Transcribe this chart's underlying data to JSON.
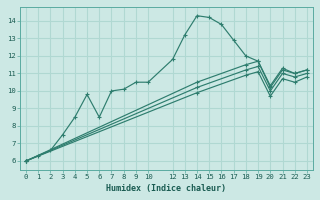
{
  "xlabel": "Humidex (Indice chaleur)",
  "bg_color": "#cce8e4",
  "grid_color": "#b0d8d2",
  "line_color": "#2e7d6e",
  "xlim": [
    -0.5,
    23.5
  ],
  "ylim": [
    5.5,
    14.8
  ],
  "xticks": [
    0,
    1,
    2,
    3,
    4,
    5,
    6,
    7,
    8,
    9,
    10,
    12,
    13,
    14,
    15,
    16,
    17,
    18,
    19,
    20,
    21,
    22,
    23
  ],
  "yticks": [
    6,
    7,
    8,
    9,
    10,
    11,
    12,
    13,
    14
  ],
  "series": [
    {
      "x": [
        0,
        1,
        2,
        3,
        4,
        5,
        6,
        7,
        8,
        9,
        10,
        12,
        13,
        14,
        15,
        16,
        17,
        18,
        19,
        20,
        21,
        22,
        23
      ],
      "y": [
        6,
        6.3,
        6.6,
        7.5,
        8.5,
        9.8,
        8.5,
        10.0,
        10.1,
        10.5,
        10.5,
        11.8,
        13.2,
        14.3,
        14.2,
        13.8,
        12.9,
        12.0,
        11.7,
        10.3,
        11.3,
        11.0,
        11.2
      ]
    },
    {
      "x": [
        0,
        14,
        18,
        19,
        20,
        21,
        22,
        23
      ],
      "y": [
        6,
        10.5,
        11.5,
        11.7,
        10.2,
        11.2,
        11.0,
        11.2
      ]
    },
    {
      "x": [
        0,
        14,
        18,
        19,
        20,
        21,
        22,
        23
      ],
      "y": [
        6,
        10.2,
        11.2,
        11.4,
        10.0,
        11.0,
        10.8,
        11.0
      ]
    },
    {
      "x": [
        0,
        14,
        18,
        19,
        20,
        21,
        22,
        23
      ],
      "y": [
        6,
        9.9,
        10.9,
        11.1,
        9.7,
        10.7,
        10.5,
        10.8
      ]
    }
  ]
}
